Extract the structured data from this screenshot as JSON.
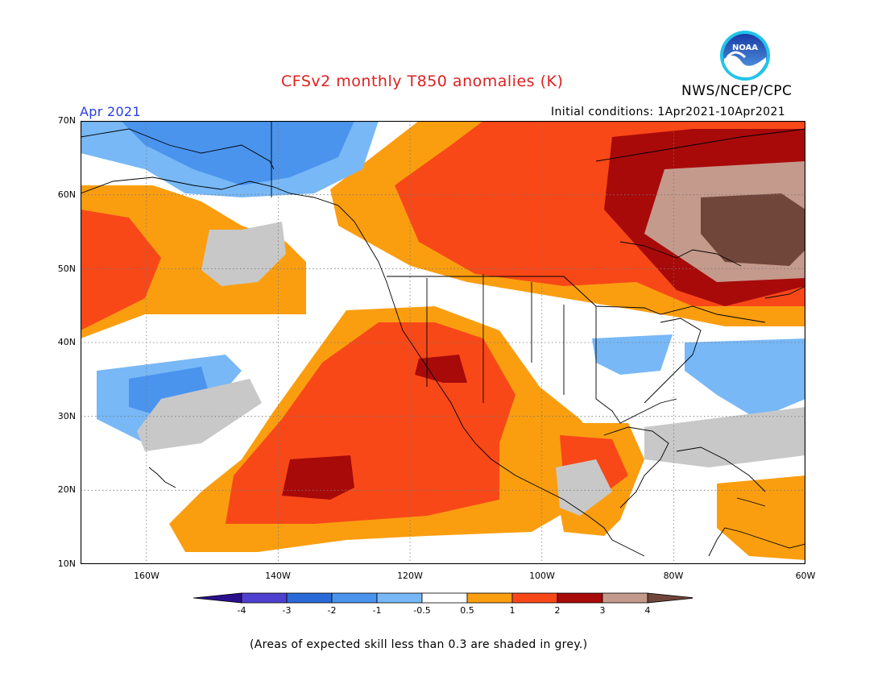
{
  "header": {
    "title": "CFSv2 monthly T850 anomalies (K)",
    "agency": "NWS/NCEP/CPC",
    "logo_text": "NOAA",
    "period": "Apr 2021",
    "initial_conditions": "Initial conditions: 1Apr2021-10Apr2021"
  },
  "axes": {
    "lat_labels": [
      "70N",
      "60N",
      "50N",
      "40N",
      "30N",
      "20N",
      "10N"
    ],
    "lon_labels": [
      "160W",
      "140W",
      "120W",
      "100W",
      "80W",
      "60W"
    ]
  },
  "colorbar": {
    "tick_labels": [
      "-4",
      "-3",
      "-2",
      "-1",
      "-0.5",
      "0.5",
      "1",
      "2",
      "3",
      "4"
    ],
    "colors": [
      "#2a0f8c",
      "#5040d0",
      "#2a6ad8",
      "#4a94ee",
      "#78b8f6",
      "#ffffff",
      "#fa9e10",
      "#f84818",
      "#a80a0a",
      "#c49a8c",
      "#70453a"
    ]
  },
  "regions": {
    "cold_gulf_alaska": "below -1",
    "cold_hawaii_ne": "-1 to -2",
    "warm_canada_east": "2 to 4",
    "warm_southwest_us": "1 to 3",
    "warm_east_pacific": "1 to 3",
    "cold_ohio_valley": "-0.5 to -1",
    "cold_w_atlantic": "-0.5 to -1"
  },
  "footer": {
    "note": "(Areas of expected skill less than 0.3 are shaded in grey.)"
  }
}
